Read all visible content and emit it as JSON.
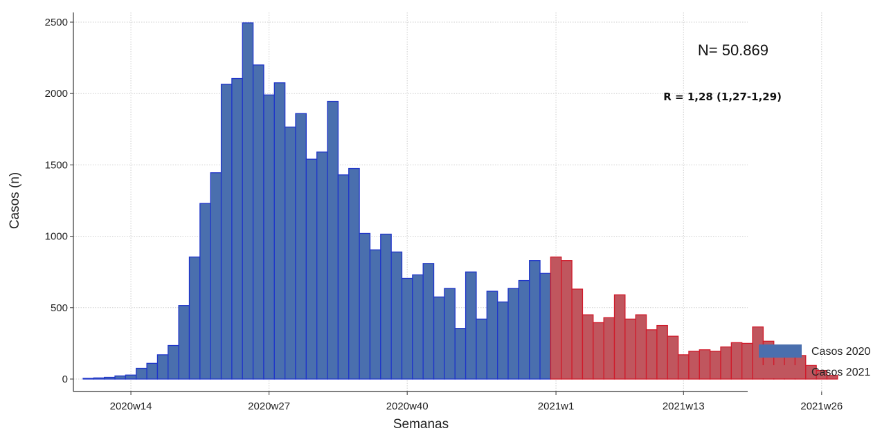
{
  "chart_data": {
    "type": "bar",
    "title": "",
    "xlabel": "Semanas",
    "ylabel": "Casos (n)",
    "ylim": [
      0,
      2500
    ],
    "yticks": [
      0,
      500,
      1000,
      1500,
      2000,
      2500
    ],
    "xtick_labels": [
      "2020w14",
      "2020w27",
      "2020w40",
      "2021w1",
      "2021w13",
      "2021w26"
    ],
    "grid": true,
    "legend_position": "bottom-right",
    "annotations": {
      "n_text": "N= 50.869",
      "r_text": "R = 1,28 (1,27-1,29)"
    },
    "series": [
      {
        "name": "Casos 2020",
        "color": "#4a6fae",
        "edge_color": "#1f35c9",
        "categories": [
          "2020w10",
          "2020w11",
          "2020w12",
          "2020w13",
          "2020w14",
          "2020w15",
          "2020w16",
          "2020w17",
          "2020w18",
          "2020w19",
          "2020w20",
          "2020w21",
          "2020w22",
          "2020w23",
          "2020w24",
          "2020w25",
          "2020w26",
          "2020w27",
          "2020w28",
          "2020w29",
          "2020w30",
          "2020w31",
          "2020w32",
          "2020w33",
          "2020w34",
          "2020w35",
          "2020w36",
          "2020w37",
          "2020w38",
          "2020w39",
          "2020w40",
          "2020w41",
          "2020w42",
          "2020w43",
          "2020w44",
          "2020w45",
          "2020w46",
          "2020w47",
          "2020w48",
          "2020w49",
          "2020w50",
          "2020w51",
          "2020w52",
          "2020w53"
        ],
        "values": [
          5,
          8,
          12,
          22,
          28,
          75,
          110,
          170,
          235,
          515,
          855,
          1230,
          1445,
          2065,
          2105,
          2495,
          2200,
          1990,
          2075,
          1765,
          1860,
          1540,
          1590,
          1945,
          1430,
          1475,
          1020,
          905,
          1015,
          890,
          705,
          730,
          810,
          575,
          635,
          355,
          750,
          420,
          615,
          540,
          635,
          690,
          830,
          740
        ]
      },
      {
        "name": "Casos 2021",
        "color": "#c0565e",
        "edge_color": "#d01a2a",
        "categories": [
          "2021w1",
          "2021w2",
          "2021w3",
          "2021w4",
          "2021w5",
          "2021w6",
          "2021w7",
          "2021w8",
          "2021w9",
          "2021w10",
          "2021w11",
          "2021w12",
          "2021w13",
          "2021w14",
          "2021w15",
          "2021w16",
          "2021w17",
          "2021w18",
          "2021w19",
          "2021w20",
          "2021w21",
          "2021w22",
          "2021w23",
          "2021w24",
          "2021w25",
          "2021w26",
          "2021w27"
        ],
        "values": [
          855,
          830,
          630,
          450,
          395,
          430,
          590,
          420,
          450,
          345,
          375,
          300,
          170,
          195,
          205,
          195,
          225,
          255,
          250,
          365,
          265,
          220,
          205,
          165,
          95,
          60,
          25
        ]
      }
    ]
  }
}
